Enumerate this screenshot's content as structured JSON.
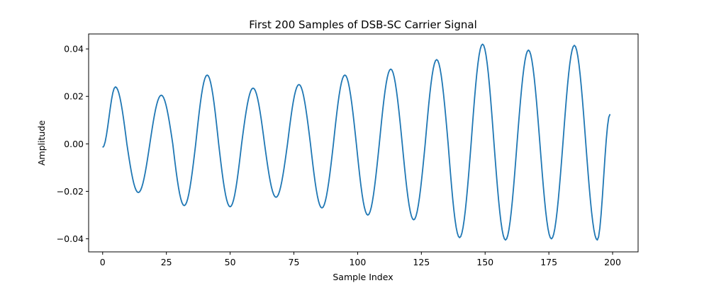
{
  "chart_data": {
    "type": "line",
    "title": "First 200 Samples of DSB-SC Carrier Signal",
    "xlabel": "Sample Index",
    "ylabel": "Amplitude",
    "xlim": [
      -5.5,
      210
    ],
    "ylim": [
      -0.0455,
      0.0463
    ],
    "xticks": [
      0,
      25,
      50,
      75,
      100,
      125,
      150,
      175,
      200
    ],
    "yticks": [
      0.04,
      0.02,
      0.0,
      -0.02,
      -0.04
    ],
    "xtick_labels": [
      "0",
      "25",
      "50",
      "75",
      "100",
      "125",
      "150",
      "175",
      "200"
    ],
    "ytick_labels": [
      "0.04",
      "0.02",
      "0.00",
      "−0.02",
      "−0.04"
    ],
    "grid": false,
    "series": [
      {
        "color": "#1f77b4",
        "x": [
          0,
          5,
          9.5,
          14,
          18.5,
          23,
          27.5,
          32,
          36.5,
          41,
          45.5,
          50,
          54.5,
          59,
          63.5,
          68,
          72.5,
          77,
          81.5,
          86,
          90.5,
          95,
          99.5,
          104,
          108.5,
          113,
          117.5,
          122,
          126.5,
          131,
          135.5,
          140,
          144.5,
          149,
          153.5,
          158,
          162.5,
          167,
          171.5,
          176,
          180.5,
          185,
          189.5,
          194,
          199
        ],
        "y": [
          -0.0015,
          0.024,
          0.0,
          -0.0205,
          0.0,
          0.0205,
          0.0,
          -0.026,
          0.0,
          0.029,
          0.0,
          -0.0265,
          0.0,
          0.0235,
          0.0,
          -0.0225,
          0.0,
          0.025,
          0.0,
          -0.027,
          0.0,
          0.029,
          0.0,
          -0.03,
          0.0,
          0.0315,
          0.0,
          -0.032,
          0.0,
          0.0355,
          0.0,
          -0.0395,
          0.0,
          0.042,
          0.0,
          -0.0405,
          0.0,
          0.0395,
          0.0,
          -0.04,
          0.0,
          0.0415,
          0.0,
          -0.0405,
          0.0125
        ]
      }
    ]
  }
}
